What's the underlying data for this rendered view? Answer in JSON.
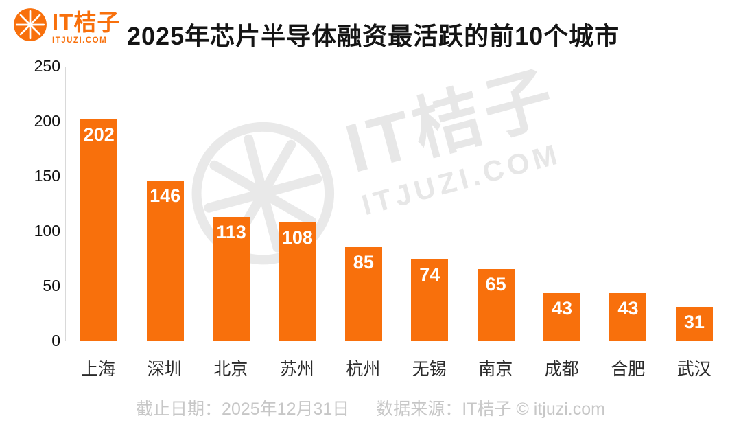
{
  "brand": {
    "name": "IT桔子",
    "domain": "ITJUZI.COM"
  },
  "title": "2025年芯片半导体融资最活跃的前10个城市",
  "watermark": {
    "text": "IT桔子",
    "subtext": "ITJUZI.COM"
  },
  "footer": {
    "date_label": "截止日期：2025年12月31日",
    "source_label": "数据来源：IT桔子 © itjuzi.com"
  },
  "colors": {
    "bar": "#f8700c",
    "brand": "#f8700c",
    "value_label": "#ffffff",
    "axis_line": "#d9d9d9",
    "footer_text": "#c7c7c7",
    "watermark": "#e7e7e7"
  },
  "chart_data": {
    "type": "bar",
    "title": "2025年芯片半导体融资最活跃的前10个城市",
    "categories": [
      "上海",
      "深圳",
      "北京",
      "苏州",
      "杭州",
      "无锡",
      "南京",
      "成都",
      "合肥",
      "武汉"
    ],
    "values": [
      202,
      146,
      113,
      108,
      85,
      74,
      65,
      43,
      43,
      31
    ],
    "xlabel": "",
    "ylabel": "",
    "ylim": [
      0,
      250
    ],
    "yticks": [
      0,
      50,
      100,
      150,
      200,
      250
    ],
    "grid": false,
    "legend": false,
    "bar_color": "#f8700c",
    "value_labels": "inside-top, white bold"
  }
}
